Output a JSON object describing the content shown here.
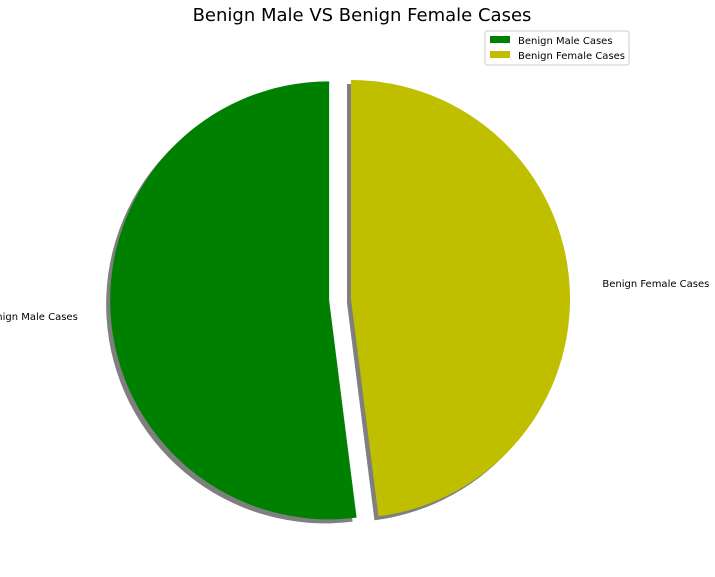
{
  "chart_data": {
    "type": "pie",
    "title": "Benign Male VS Benign Female Cases",
    "categories": [
      "Benign Male Cases",
      "Benign Female Cases"
    ],
    "values": [
      52,
      48
    ],
    "colors": [
      "#008000",
      "#bfbf00"
    ],
    "explode": [
      0.1,
      0
    ],
    "shadow": true,
    "start_angle_deg": 90,
    "legend": {
      "placement": "top-right",
      "entries": [
        "Benign Male Cases",
        "Benign Female Cases"
      ]
    }
  }
}
